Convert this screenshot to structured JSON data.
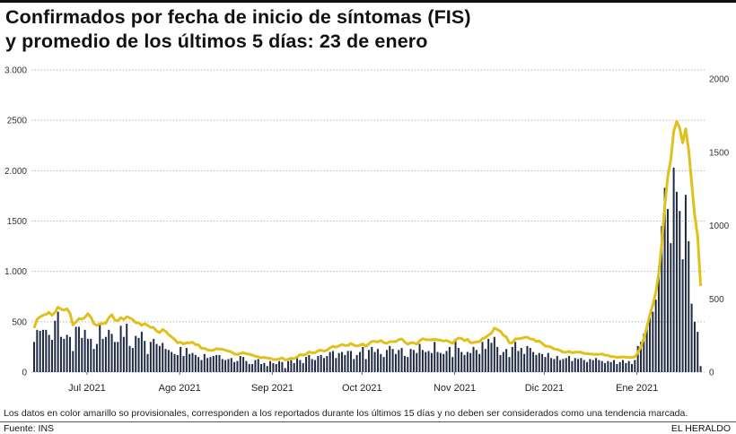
{
  "title_line1": "Confirmados por fecha de inicio de síntomas (FIS)",
  "title_line2": "y promedio de los últimos 5 días: 23 de enero",
  "note": "Los datos en color amarillo so provisionales, corresponden a los reportados durante los últimos 15 días y no deben ser considerados como una tendencia marcada.",
  "source": "Fuente: INS",
  "brand": "EL HERALDO",
  "colors": {
    "bars": "#1f2a44",
    "line": "#e2c01a",
    "grid": "#b5b5b5"
  },
  "chart_data": {
    "type": "bar+line",
    "title": "Confirmados por fecha de inicio de síntomas (FIS) y promedio de los últimos 5 días: 23 de enero",
    "x_start": "2021-06-13",
    "x_end": "2022-01-22",
    "month_labels": [
      "Jul 2021",
      "Ago 2021",
      "Sep 2021",
      "Oct 2021",
      "Nov 2021",
      "Dic 2021",
      "Ene 2021"
    ],
    "month_label_day_index": [
      18,
      49,
      80,
      110,
      141,
      171,
      202
    ],
    "left_axis": {
      "ticks": [
        0,
        500,
        1000,
        1500,
        2000,
        2500,
        3000
      ],
      "tick_labels": [
        "0",
        "500",
        "1.000",
        "1500",
        "2.000",
        "2500",
        "3.000"
      ],
      "ylim": [
        0,
        3000
      ]
    },
    "right_axis": {
      "ticks": [
        0,
        500,
        1000,
        1500,
        2000
      ],
      "tick_labels": [
        "0",
        "500",
        "1000",
        "1500",
        "2000"
      ],
      "ylim": [
        0,
        2000
      ]
    },
    "grid": true,
    "series": [
      {
        "name": "Confirmados (FIS)",
        "axis": "left",
        "type": "bar",
        "values": [
          300,
          420,
          410,
          420,
          420,
          370,
          320,
          510,
          600,
          350,
          330,
          370,
          350,
          210,
          450,
          450,
          340,
          420,
          330,
          330,
          230,
          280,
          480,
          330,
          350,
          420,
          380,
          300,
          300,
          460,
          350,
          480,
          260,
          240,
          360,
          340,
          400,
          310,
          180,
          300,
          330,
          280,
          260,
          290,
          230,
          220,
          200,
          180,
          170,
          250,
          160,
          240,
          180,
          190,
          170,
          150,
          120,
          180,
          140,
          150,
          160,
          170,
          170,
          130,
          120,
          130,
          140,
          100,
          110,
          160,
          150,
          110,
          80,
          80,
          120,
          130,
          80,
          90,
          60,
          110,
          90,
          80,
          110,
          100,
          40,
          110,
          120,
          90,
          160,
          120,
          90,
          150,
          170,
          130,
          120,
          160,
          170,
          140,
          160,
          200,
          210,
          140,
          190,
          200,
          170,
          210,
          210,
          130,
          170,
          200,
          250,
          130,
          220,
          250,
          200,
          230,
          180,
          150,
          220,
          260,
          230,
          180,
          220,
          240,
          160,
          150,
          230,
          220,
          190,
          280,
          220,
          200,
          210,
          190,
          300,
          200,
          190,
          180,
          210,
          250,
          150,
          310,
          240,
          200,
          170,
          200,
          190,
          250,
          220,
          180,
          300,
          230,
          330,
          290,
          350,
          250,
          170,
          200,
          230,
          150,
          250,
          300,
          210,
          240,
          180,
          260,
          240,
          200,
          170,
          190,
          180,
          150,
          190,
          140,
          130,
          160,
          120,
          130,
          140,
          160,
          110,
          140,
          130,
          140,
          120,
          100,
          130,
          120,
          140,
          120,
          110,
          90,
          110,
          100,
          120,
          80,
          100,
          120,
          90,
          110,
          80,
          120,
          260,
          300,
          380,
          470,
          540,
          600,
          720,
          1050,
          1450,
          1830,
          1620,
          1280,
          2030,
          1790,
          1600,
          1120,
          1760,
          1300,
          680,
          500,
          400,
          60
        ]
      },
      {
        "name": "Promedio de los últimos 5 días",
        "axis": "right",
        "type": "line",
        "window": 5
      }
    ]
  }
}
